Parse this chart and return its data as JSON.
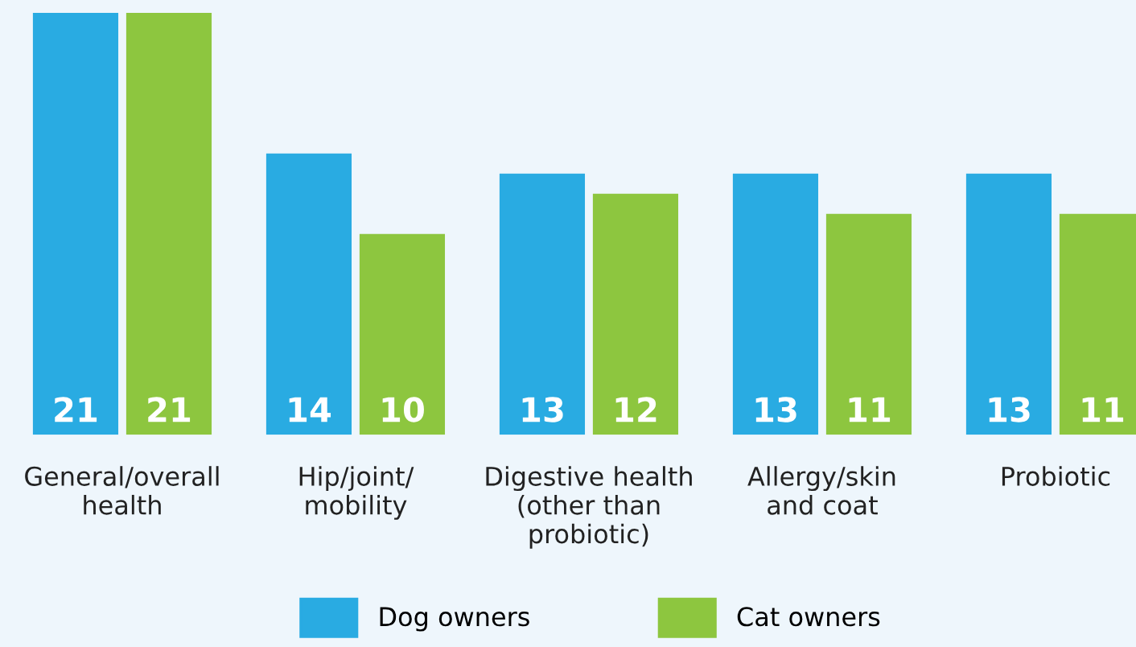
{
  "chart_data": {
    "type": "bar",
    "categories": [
      "General/overall\nhealth",
      "Hip/joint/\nmobility",
      "Digestive health\n(other than\nprobiotic)",
      "Allergy/skin\nand coat",
      "Probiotic"
    ],
    "series": [
      {
        "name": "Dog owners",
        "color": "#29abe2",
        "values": [
          21,
          14,
          13,
          13,
          13
        ]
      },
      {
        "name": "Cat owners",
        "color": "#8dc63f",
        "values": [
          21,
          10,
          12,
          11,
          11
        ]
      }
    ],
    "data_labels": true,
    "legend": "bottom",
    "grid": false
  }
}
